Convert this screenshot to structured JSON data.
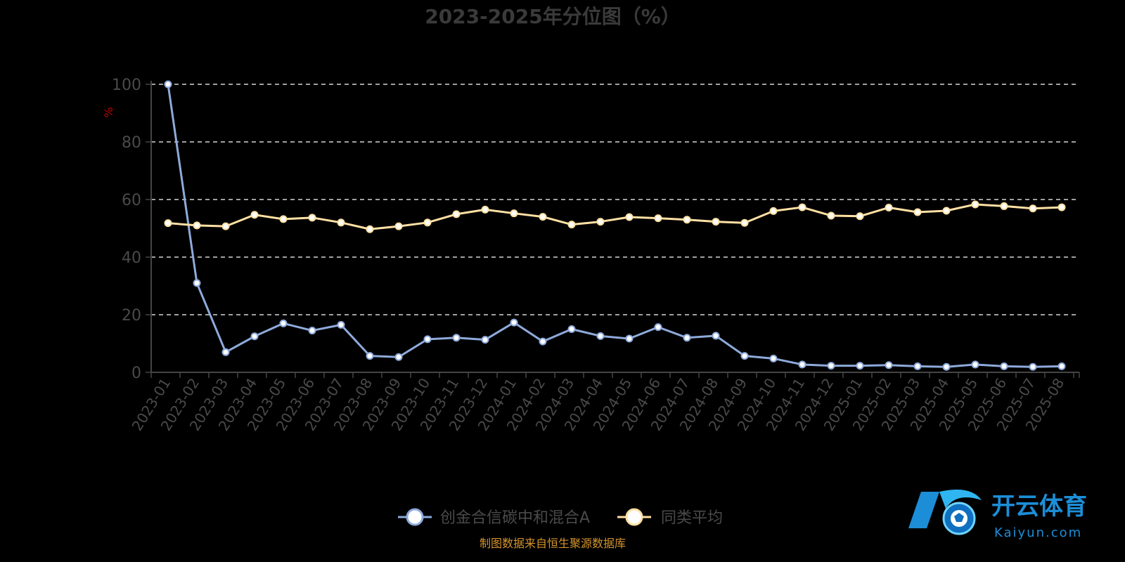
{
  "chart_data": {
    "type": "line",
    "title": "2023-2025年分位图（%）",
    "ylabel": "%",
    "xlabel": "",
    "ylim": [
      0,
      100
    ],
    "yticks": [
      0,
      20,
      40,
      60,
      80,
      100
    ],
    "grid": true,
    "legend_position": "bottom",
    "categories": [
      "2023-01",
      "2023-02",
      "2023-03",
      "2023-04",
      "2023-05",
      "2023-06",
      "2023-07",
      "2023-08",
      "2023-09",
      "2023-10",
      "2023-11",
      "2023-12",
      "2024-01",
      "2024-02",
      "2024-03",
      "2024-04",
      "2024-05",
      "2024-06",
      "2024-07",
      "2024-08",
      "2024-09",
      "2024-10",
      "2024-11",
      "2024-12",
      "2025-01",
      "2025-02",
      "2025-03",
      "2025-04",
      "2025-05",
      "2025-06",
      "2025-07",
      "2025-08"
    ],
    "series": [
      {
        "name": "创金合信碳中和混合A",
        "color": "#8eaadb",
        "values": [
          100,
          31,
          7,
          12.5,
          17,
          14.5,
          16.5,
          5.7,
          5.3,
          11.5,
          12,
          11.3,
          17.3,
          10.7,
          15,
          12.6,
          11.7,
          15.7,
          12,
          12.7,
          5.7,
          4.8,
          2.7,
          2.3,
          2.3,
          2.5,
          2.1,
          1.9,
          2.7,
          2.1,
          1.9,
          2.1
        ]
      },
      {
        "name": "同类平均",
        "color": "#ffe0a3",
        "values": [
          51.8,
          51,
          50.7,
          54.7,
          53.2,
          53.7,
          52,
          49.7,
          50.7,
          52,
          54.9,
          56.5,
          55.2,
          54,
          51.3,
          52.3,
          53.9,
          53.5,
          53,
          52.3,
          51.9,
          56,
          57.3,
          54.4,
          54.2,
          57.2,
          55.6,
          56.1,
          58.3,
          57.7,
          56.9,
          57.3
        ]
      }
    ]
  },
  "source_note": "制图数据来自恒生聚源数据库",
  "watermark": {
    "cn": "开云体育",
    "en": "Kaiyun.com"
  },
  "colors": {
    "grid": "#ffffff",
    "axis": "#444444",
    "source": "#d4942c",
    "watermark": "#1c8ed8"
  }
}
